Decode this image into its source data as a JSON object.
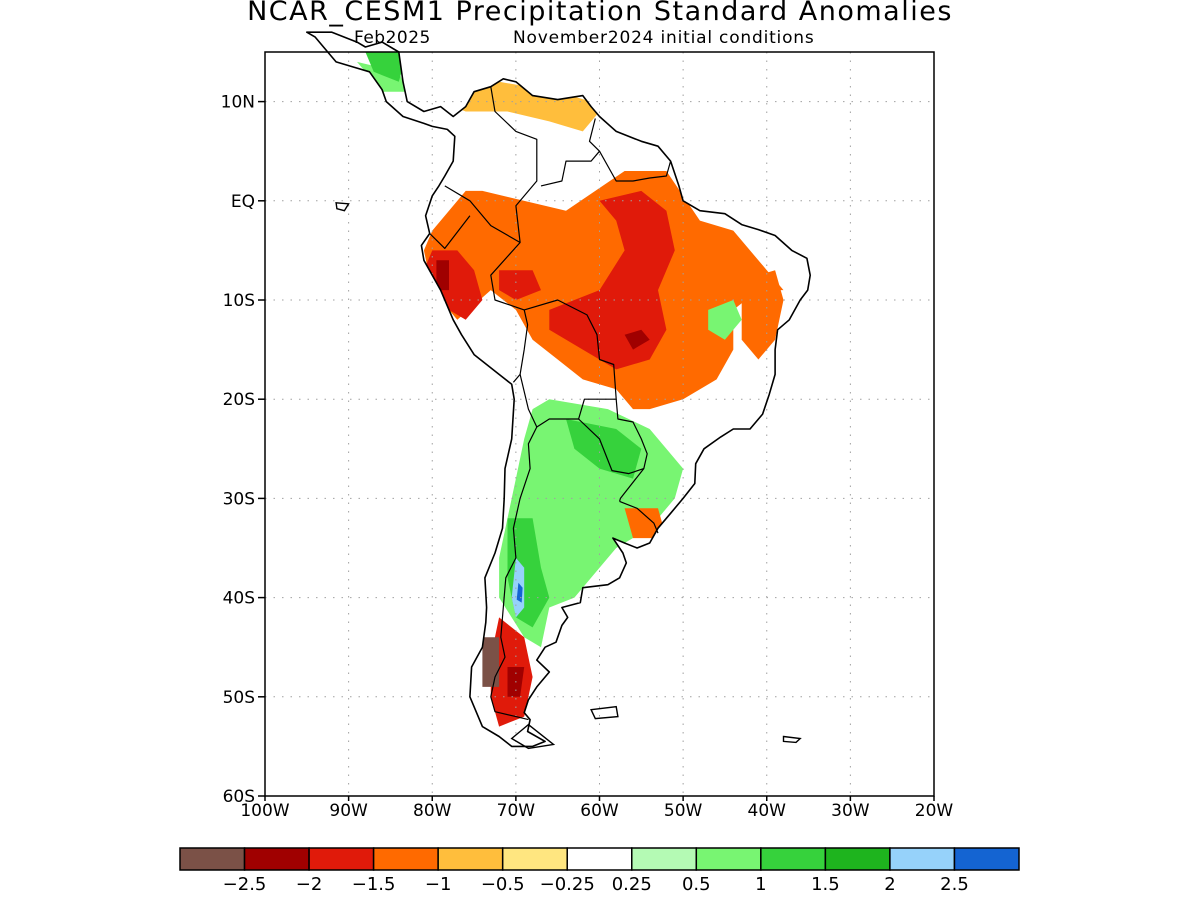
{
  "title": "NCAR_CESM1 Precipitation Standard Anomalies",
  "subtitle_left": "Feb2025",
  "subtitle_right": "November2024 initial conditions",
  "map": {
    "lon_range": [
      -100,
      -20
    ],
    "lat_range": [
      -60,
      15
    ],
    "lat_ticks": [
      {
        "value": 10,
        "label": "10N"
      },
      {
        "value": 0,
        "label": "EQ"
      },
      {
        "value": -10,
        "label": "10S"
      },
      {
        "value": -20,
        "label": "20S"
      },
      {
        "value": -30,
        "label": "30S"
      },
      {
        "value": -40,
        "label": "40S"
      },
      {
        "value": -50,
        "label": "50S"
      },
      {
        "value": -60,
        "label": "60S"
      }
    ],
    "lon_ticks": [
      {
        "value": -100,
        "label": "100W"
      },
      {
        "value": -90,
        "label": "90W"
      },
      {
        "value": -80,
        "label": "80W"
      },
      {
        "value": -70,
        "label": "70W"
      },
      {
        "value": -60,
        "label": "60W"
      },
      {
        "value": -50,
        "label": "50W"
      },
      {
        "value": -40,
        "label": "40W"
      },
      {
        "value": -30,
        "label": "30W"
      },
      {
        "value": -20,
        "label": "20W"
      }
    ],
    "grid": "dotted",
    "anomaly_regions": [
      {
        "level": "-1",
        "polygon": [
          [
            -74,
            1
          ],
          [
            -64,
            -1
          ],
          [
            -57,
            3
          ],
          [
            -52,
            3
          ],
          [
            -48,
            -2
          ],
          [
            -44,
            -3
          ],
          [
            -42,
            -5
          ],
          [
            -40,
            -7
          ],
          [
            -38,
            -9
          ],
          [
            -41,
            -9
          ],
          [
            -44,
            -11
          ],
          [
            -44,
            -15
          ],
          [
            -46,
            -18
          ],
          [
            -50,
            -20
          ],
          [
            -54,
            -21
          ],
          [
            -56,
            -21
          ],
          [
            -58,
            -19
          ],
          [
            -62,
            -18
          ],
          [
            -65,
            -16
          ],
          [
            -68,
            -14
          ],
          [
            -70,
            -11
          ],
          [
            -73,
            -9
          ],
          [
            -77,
            -12
          ],
          [
            -80,
            -9
          ],
          [
            -81,
            -5
          ],
          [
            -80,
            -3
          ],
          [
            -78,
            -1
          ],
          [
            -76,
            1
          ]
        ]
      },
      {
        "level": "-0.5",
        "polygon": [
          [
            -78,
            12
          ],
          [
            -72,
            12
          ],
          [
            -65,
            11
          ],
          [
            -61,
            10
          ],
          [
            -60,
            9
          ],
          [
            -62,
            7
          ],
          [
            -66,
            8
          ],
          [
            -71,
            9
          ],
          [
            -76,
            9
          ],
          [
            -79,
            10
          ]
        ]
      },
      {
        "level": "-1.5",
        "polygon": [
          [
            -60,
            0
          ],
          [
            -55,
            1
          ],
          [
            -52,
            -1
          ],
          [
            -51,
            -5
          ],
          [
            -53,
            -9
          ],
          [
            -52,
            -13
          ],
          [
            -54,
            -16
          ],
          [
            -58,
            -17
          ],
          [
            -62,
            -15
          ],
          [
            -66,
            -13
          ],
          [
            -66,
            -11
          ],
          [
            -60,
            -9
          ],
          [
            -57,
            -5
          ],
          [
            -58,
            -2
          ]
        ]
      },
      {
        "level": "-1.5",
        "polygon": [
          [
            -80,
            -5
          ],
          [
            -77,
            -5
          ],
          [
            -75,
            -7
          ],
          [
            -74,
            -10
          ],
          [
            -76,
            -12
          ],
          [
            -78,
            -11
          ],
          [
            -80,
            -9
          ],
          [
            -81,
            -7
          ]
        ]
      },
      {
        "level": "-1.5",
        "polygon": [
          [
            -72,
            -7
          ],
          [
            -68,
            -7
          ],
          [
            -67,
            -9
          ],
          [
            -70,
            -10
          ],
          [
            -72,
            -9
          ]
        ]
      },
      {
        "level": "-2",
        "polygon": [
          [
            -57,
            -13.5
          ],
          [
            -55,
            -13
          ],
          [
            -54,
            -14
          ],
          [
            -56,
            -15
          ]
        ]
      },
      {
        "level": "-2",
        "polygon": [
          [
            -79.5,
            -6
          ],
          [
            -78,
            -6
          ],
          [
            -78,
            -9
          ],
          [
            -79.5,
            -9
          ]
        ]
      },
      {
        "level": "-1",
        "polygon": [
          [
            -43,
            -8
          ],
          [
            -39,
            -7
          ],
          [
            -38,
            -10
          ],
          [
            -39,
            -14
          ],
          [
            -41,
            -16
          ],
          [
            -43,
            -14
          ]
        ]
      },
      {
        "level": "1",
        "polygon": [
          [
            -47,
            -11
          ],
          [
            -44,
            -10
          ],
          [
            -43,
            -12
          ],
          [
            -45,
            -14
          ],
          [
            -47,
            -13
          ]
        ]
      },
      {
        "level": "1",
        "polygon": [
          [
            -66,
            -20
          ],
          [
            -59,
            -21
          ],
          [
            -54,
            -23
          ],
          [
            -50,
            -27
          ],
          [
            -51,
            -30
          ],
          [
            -54,
            -33
          ],
          [
            -58,
            -35
          ],
          [
            -61,
            -38
          ],
          [
            -63,
            -40
          ],
          [
            -66,
            -41
          ],
          [
            -67,
            -45
          ],
          [
            -69,
            -44
          ],
          [
            -72,
            -40
          ],
          [
            -72,
            -36
          ],
          [
            -71,
            -32
          ],
          [
            -70,
            -28
          ],
          [
            -69,
            -24
          ],
          [
            -68,
            -21
          ]
        ]
      },
      {
        "level": "1.5",
        "polygon": [
          [
            -64,
            -22
          ],
          [
            -58,
            -23
          ],
          [
            -55,
            -25
          ],
          [
            -56,
            -28
          ],
          [
            -60,
            -27
          ],
          [
            -63,
            -25
          ]
        ]
      },
      {
        "level": "1.5",
        "polygon": [
          [
            -71,
            -32
          ],
          [
            -68,
            -32
          ],
          [
            -67,
            -37
          ],
          [
            -66,
            -40
          ],
          [
            -68,
            -43
          ],
          [
            -70,
            -42
          ],
          [
            -71,
            -38
          ]
        ]
      },
      {
        "level": "2",
        "polygon": [
          [
            -70,
            -36
          ],
          [
            -69,
            -37
          ],
          [
            -69,
            -41
          ],
          [
            -70,
            -42
          ],
          [
            -70.5,
            -40
          ]
        ]
      },
      {
        "level": "2.5",
        "polygon": [
          [
            -69.7,
            -38.5
          ],
          [
            -69.2,
            -39
          ],
          [
            -69.3,
            -40.5
          ],
          [
            -69.9,
            -40.2
          ]
        ]
      },
      {
        "level": "-1.5",
        "polygon": [
          [
            -72,
            -42
          ],
          [
            -69,
            -44
          ],
          [
            -68,
            -48
          ],
          [
            -69,
            -52
          ],
          [
            -72,
            -53
          ],
          [
            -73,
            -50
          ],
          [
            -73,
            -46
          ]
        ]
      },
      {
        "level": "-2",
        "polygon": [
          [
            -71,
            -47
          ],
          [
            -69,
            -47
          ],
          [
            -69.5,
            -50
          ],
          [
            -71,
            -50
          ]
        ]
      },
      {
        "level": "-2.5",
        "polygon": [
          [
            -74,
            -44
          ],
          [
            -72,
            -44
          ],
          [
            -72,
            -49
          ],
          [
            -74,
            -49
          ]
        ]
      },
      {
        "level": "-1",
        "polygon": [
          [
            -57,
            -31
          ],
          [
            -53,
            -31
          ],
          [
            -52,
            -34
          ],
          [
            -56,
            -34
          ]
        ]
      },
      {
        "level": "1",
        "polygon": [
          [
            -89,
            14
          ],
          [
            -84,
            13
          ],
          [
            -83,
            11
          ],
          [
            -86,
            11
          ],
          [
            -88,
            13
          ]
        ]
      },
      {
        "level": "1.5",
        "polygon": [
          [
            -88,
            15
          ],
          [
            -83,
            15
          ],
          [
            -84,
            12
          ],
          [
            -87,
            13
          ]
        ]
      }
    ]
  },
  "colorbar": {
    "colors": [
      "#7b5147",
      "#a00000",
      "#e01a0a",
      "#ff6a00",
      "#ffbe3c",
      "#ffe680",
      "#ffffff",
      "#b4fab4",
      "#78f572",
      "#36d23c",
      "#1eb41e",
      "#96d2fa",
      "#1464d2"
    ],
    "labels": [
      "−2.5",
      "−2",
      "−1.5",
      "−1",
      "−0.5",
      "−0.25",
      "0.25",
      "0.5",
      "1",
      "1.5",
      "2",
      "2.5"
    ]
  }
}
